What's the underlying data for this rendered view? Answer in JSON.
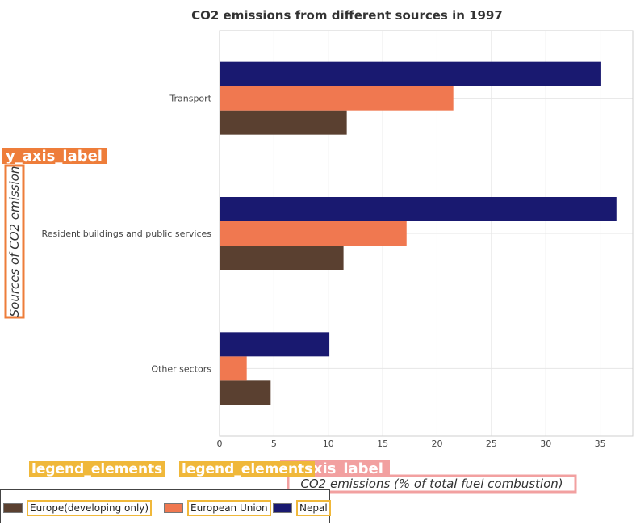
{
  "chart_data": {
    "type": "bar",
    "orientation": "horizontal",
    "title": "CO2 emissions from different sources in 1997",
    "xlabel": "CO2 emissions (% of total fuel combustion)",
    "ylabel": "Sources of CO2 emission",
    "x_axis_tag": "x_axis_label",
    "y_axis_tag": "y_axis_label",
    "categories": [
      "Other sectors",
      "Resident buildings and public services",
      "Transport"
    ],
    "xlim": [
      0,
      38
    ],
    "xticks": [
      0,
      5,
      10,
      15,
      20,
      25,
      30,
      35
    ],
    "grid": true,
    "legend_position": "bottom-left",
    "series": [
      {
        "name": "Europe(developing only)",
        "color": "#5a4030",
        "values": [
          4.7,
          11.4,
          11.7
        ]
      },
      {
        "name": "European Union",
        "color": "#f07850",
        "values": [
          2.5,
          17.2,
          21.5
        ]
      },
      {
        "name": "Nepal",
        "color": "#191970",
        "values": [
          10.1,
          36.5,
          35.1
        ]
      }
    ]
  },
  "legend": {
    "tag_text": "legend_elements",
    "items": [
      {
        "label": "Europe(developing only)",
        "color": "#5a4030"
      },
      {
        "label": "European Union",
        "color": "#f07850"
      },
      {
        "label": "Nepal",
        "color": "#191970"
      }
    ]
  }
}
